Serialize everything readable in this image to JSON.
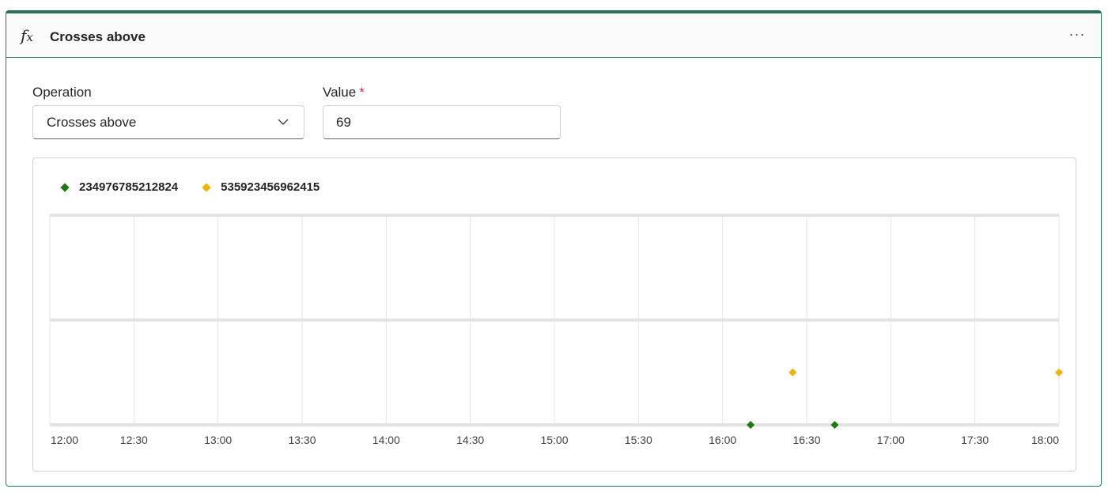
{
  "card": {
    "title": "Crosses above",
    "icon": "function-icon",
    "more_label": "···"
  },
  "form": {
    "operation_label": "Operation",
    "operation_value": "Crosses above",
    "value_label": "Value",
    "value_required_mark": "*",
    "value_value": "69"
  },
  "chart_data": {
    "type": "scatter",
    "x_ticks": [
      "12:00",
      "12:30",
      "13:00",
      "13:30",
      "14:00",
      "14:30",
      "15:00",
      "15:30",
      "16:00",
      "16:30",
      "17:00",
      "17:30",
      "18:00"
    ],
    "xlim": [
      "12:00",
      "18:00"
    ],
    "grid": true,
    "legend_position": "top-left",
    "series": [
      {
        "name": "234976785212824",
        "color": "#1e7a0e",
        "points": [
          {
            "x": "16:10",
            "y": 0
          },
          {
            "x": "16:40",
            "y": 0
          }
        ]
      },
      {
        "name": "535923456962415",
        "color": "#f2b400",
        "points": [
          {
            "x": "16:25",
            "y": 0.5
          },
          {
            "x": "18:00",
            "y": 0.5
          }
        ]
      }
    ],
    "ylim": [
      0,
      2
    ]
  }
}
